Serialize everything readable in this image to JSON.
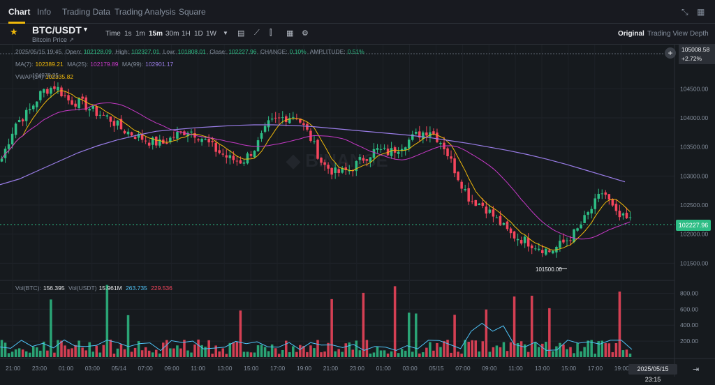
{
  "nav": {
    "tabs": [
      "Chart",
      "Info",
      "Trading Data",
      "Trading Analysis",
      "Square"
    ]
  },
  "symbol": {
    "pair": "BTC/USDT",
    "subtitle": "Bitcoin Price ↗"
  },
  "toolbar": {
    "timeframes": [
      "Time",
      "1s",
      "1m",
      "15m",
      "30m",
      "1H",
      "1D",
      "1W"
    ],
    "active_timeframe": "15m",
    "views": [
      "Original",
      "Trading View",
      "Depth"
    ],
    "active_view": "Original"
  },
  "ohlc": {
    "date": "2025/05/15 19:45",
    "open_label": "Open:",
    "open": "102128.09",
    "high_label": "High:",
    "high": "102327.01",
    "low_label": "Low:",
    "low": "101808.01",
    "close_label": "Close:",
    "close": "102227.96",
    "change_label": "CHANGE:",
    "change": "0.10%",
    "amplitude_label": "AMPLITUDE:",
    "amplitude": "0.51%"
  },
  "ma": {
    "ma7_label": "MA(7):",
    "ma7": "102389.21",
    "ma25_label": "MA(25):",
    "ma25": "102179.89",
    "ma99_label": "MA(99):",
    "ma99": "102901.17",
    "vwap_label": "VWAP(14)",
    "vwap": "102335.82"
  },
  "volume": {
    "btc_label": "Vol(BTC):",
    "btc": "156.395",
    "usdt_label": "Vol(USDT)",
    "usdt": "15.961M",
    "v1": "263.735",
    "v2": "229.536"
  },
  "price_axis": {
    "ticks": [
      "104500.00",
      "104000.00",
      "103500.00",
      "103000.00",
      "102500.00",
      "102000.00",
      "101500.00"
    ],
    "vol_ticks": [
      "800.00",
      "600.00",
      "400.00",
      "200.00"
    ],
    "current_price": "102227.96",
    "top_price": "105008.58",
    "top_change": "+2.72%"
  },
  "time_axis": {
    "ticks": [
      "21:00",
      "23:00",
      "01:00",
      "03:00",
      "05/14",
      "07:00",
      "09:00",
      "11:00",
      "13:00",
      "15:00",
      "17:00",
      "19:00",
      "21:00",
      "23:00",
      "01:00",
      "03:00",
      "05/15",
      "07:00",
      "09:00",
      "11:00",
      "13:00",
      "15:00",
      "17:00",
      "19:00"
    ],
    "cursor_date": "2025/05/15 23:15"
  },
  "annotations": {
    "low_marker": "101500.00",
    "high_marker": "104978.25"
  },
  "colors": {
    "up": "#2ebd85",
    "down": "#f6465d",
    "ma7": "#f0b90b",
    "ma25": "#c839c8",
    "ma99": "#9a7de8",
    "vol_ma": "#4fc3f7",
    "accent": "#f0b90b"
  },
  "chart_data": {
    "type": "candlestick",
    "interval": "15m",
    "price_range": [
      101300,
      104900
    ],
    "volume_range": [
      0,
      900
    ],
    "close_path": [
      103300,
      103900,
      104100,
      104450,
      104550,
      104300,
      104250,
      104100,
      104000,
      103800,
      103700,
      103600,
      103550,
      103700,
      103800,
      103650,
      103450,
      103300,
      103250,
      103500,
      103900,
      104000,
      104050,
      103700,
      103200,
      103050,
      103100,
      103300,
      103450,
      103400,
      103550,
      103700,
      103800,
      103550,
      103050,
      102600,
      102500,
      102250,
      102000,
      101900,
      101800,
      101700,
      101850,
      102050,
      102400,
      102750,
      102300,
      102230
    ],
    "ma99_path": [
      102850,
      102950,
      103100,
      103250,
      103400,
      103520,
      103620,
      103700,
      103770,
      103800,
      103830,
      103850,
      103870,
      103880,
      103880,
      103870,
      103850,
      103820,
      103790,
      103760,
      103730,
      103700,
      103660,
      103610,
      103560,
      103500,
      103440,
      103370,
      103290,
      103200,
      103100,
      103000,
      102900
    ]
  }
}
